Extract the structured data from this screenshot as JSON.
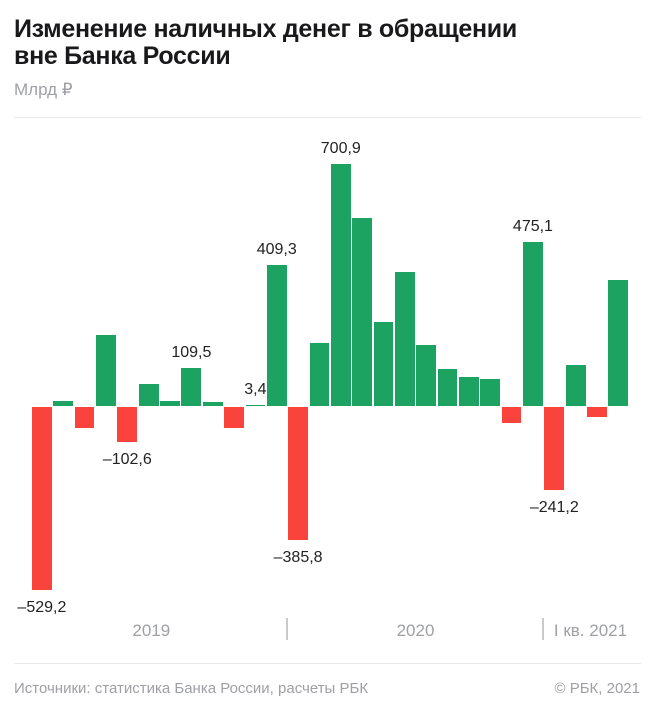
{
  "header": {
    "title_line1": "Изменение наличных денег в обращении",
    "title_line2": "вне Банка России",
    "unit_label": "Млрд ₽"
  },
  "colors": {
    "positive": "#1ca261",
    "negative": "#f9433c",
    "title_text": "#19191b",
    "value_label_text": "#222224",
    "axis_text": "#9ea0a4",
    "divider": "#e9e9ea",
    "tick": "#c9cacd",
    "background": "#ffffff"
  },
  "chart_data": {
    "type": "bar",
    "title": "Изменение наличных денег в обращении вне Банка России",
    "ylabel": "Млрд ₽",
    "unit": "млрд ₽",
    "baseline": 0,
    "ylim": [
      -550,
      720
    ],
    "grid": false,
    "legend": "none",
    "positive_color": "#1ca261",
    "negative_color": "#f9433c",
    "groups": [
      {
        "label": "2019",
        "values": [
          -529.2,
          14,
          -60,
          207,
          -102.6,
          64,
          15,
          109.5,
          13,
          -60,
          3.4,
          409.3
        ]
      },
      {
        "label": "2020",
        "values": [
          -385.8,
          183,
          700.9,
          544,
          244,
          389,
          178,
          107,
          84,
          78,
          -46,
          475.1
        ]
      },
      {
        "label": "I кв. 2021",
        "values": [
          -241.2,
          119,
          -29,
          365
        ]
      }
    ],
    "value_labels": {
      "0": "–529,2",
      "4": "–102,6",
      "7": "109,5",
      "10": "3,4",
      "11": "409,3",
      "12": "–385,8",
      "14": "700,9",
      "23": "475,1",
      "24": "–241,2"
    }
  },
  "footer": {
    "sources": "Источники: статистика Банка России, расчеты РБК",
    "copyright": "© РБК, 2021"
  }
}
